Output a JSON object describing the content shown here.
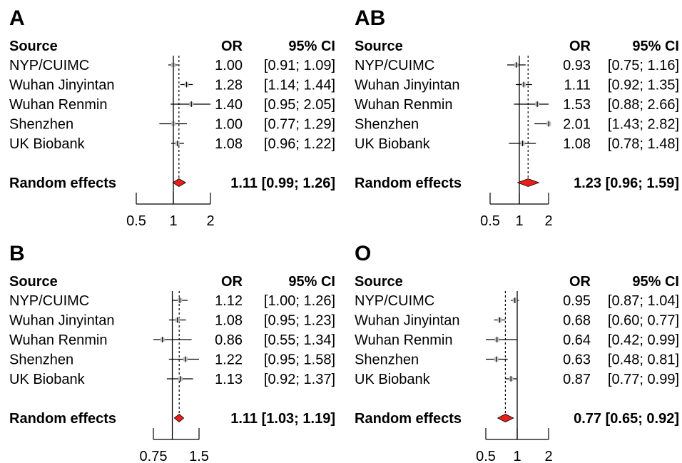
{
  "chart_data": [
    {
      "type": "forest",
      "panel_label": "A",
      "headers": {
        "source": "Source",
        "or": "OR",
        "ci": "95% CI"
      },
      "studies": [
        {
          "source": "NYP/CUIMC",
          "or": 1.0,
          "lower": 0.91,
          "upper": 1.09,
          "or_text": "1.00",
          "ci_text": "[0.91; 1.09]"
        },
        {
          "source": "Wuhan Jinyintan",
          "or": 1.28,
          "lower": 1.14,
          "upper": 1.44,
          "or_text": "1.28",
          "ci_text": "[1.14; 1.44]"
        },
        {
          "source": "Wuhan Renmin",
          "or": 1.4,
          "lower": 0.95,
          "upper": 2.05,
          "or_text": "1.40",
          "ci_text": "[0.95; 2.05]"
        },
        {
          "source": "Shenzhen",
          "or": 1.0,
          "lower": 0.77,
          "upper": 1.29,
          "or_text": "1.00",
          "ci_text": "[0.77; 1.29]"
        },
        {
          "source": "UK Biobank",
          "or": 1.08,
          "lower": 0.96,
          "upper": 1.22,
          "or_text": "1.08",
          "ci_text": "[0.96; 1.22]"
        }
      ],
      "summary": {
        "label": "Random effects",
        "or": 1.11,
        "lower": 0.99,
        "upper": 1.26,
        "text": "1.11 [0.99; 1.26]"
      },
      "x_scale": "log",
      "xlim": [
        0.5,
        2
      ],
      "xticks": [
        0.5,
        1,
        2
      ],
      "xtick_labels": [
        "0.5",
        "1",
        "2"
      ]
    },
    {
      "type": "forest",
      "panel_label": "AB",
      "headers": {
        "source": "Source",
        "or": "OR",
        "ci": "95% CI"
      },
      "studies": [
        {
          "source": "NYP/CUIMC",
          "or": 0.93,
          "lower": 0.75,
          "upper": 1.16,
          "or_text": "0.93",
          "ci_text": "[0.75; 1.16]"
        },
        {
          "source": "Wuhan Jinyintan",
          "or": 1.11,
          "lower": 0.92,
          "upper": 1.35,
          "or_text": "1.11",
          "ci_text": "[0.92; 1.35]"
        },
        {
          "source": "Wuhan Renmin",
          "or": 1.53,
          "lower": 0.88,
          "upper": 2.66,
          "or_text": "1.53",
          "ci_text": "[0.88; 2.66]"
        },
        {
          "source": "Shenzhen",
          "or": 2.01,
          "lower": 1.43,
          "upper": 2.82,
          "or_text": "2.01",
          "ci_text": "[1.43; 2.82]"
        },
        {
          "source": "UK Biobank",
          "or": 1.08,
          "lower": 0.78,
          "upper": 1.48,
          "or_text": "1.08",
          "ci_text": "[0.78; 1.48]"
        }
      ],
      "summary": {
        "label": "Random effects",
        "or": 1.23,
        "lower": 0.96,
        "upper": 1.59,
        "text": "1.23 [0.96; 1.59]"
      },
      "x_scale": "log",
      "xlim": [
        0.5,
        2
      ],
      "xticks": [
        0.5,
        1,
        2
      ],
      "xtick_labels": [
        "0.5",
        "1",
        "2"
      ]
    },
    {
      "type": "forest",
      "panel_label": "B",
      "headers": {
        "source": "Source",
        "or": "OR",
        "ci": "95% CI"
      },
      "studies": [
        {
          "source": "NYP/CUIMC",
          "or": 1.12,
          "lower": 1.0,
          "upper": 1.26,
          "or_text": "1.12",
          "ci_text": "[1.00; 1.26]"
        },
        {
          "source": "Wuhan Jinyintan",
          "or": 1.08,
          "lower": 0.95,
          "upper": 1.23,
          "or_text": "1.08",
          "ci_text": "[0.95; 1.23]"
        },
        {
          "source": "Wuhan Renmin",
          "or": 0.86,
          "lower": 0.55,
          "upper": 1.34,
          "or_text": "0.86",
          "ci_text": "[0.55; 1.34]"
        },
        {
          "source": "Shenzhen",
          "or": 1.22,
          "lower": 0.95,
          "upper": 1.58,
          "or_text": "1.22",
          "ci_text": "[0.95; 1.58]"
        },
        {
          "source": "UK Biobank",
          "or": 1.13,
          "lower": 0.92,
          "upper": 1.37,
          "or_text": "1.13",
          "ci_text": "[0.92; 1.37]"
        }
      ],
      "summary": {
        "label": "Random effects",
        "or": 1.11,
        "lower": 1.03,
        "upper": 1.19,
        "text": "1.11 [1.03; 1.19]"
      },
      "x_scale": "log",
      "xlim": [
        0.75,
        1.5
      ],
      "xticks": [
        0.75,
        1.5
      ],
      "xtick_labels": [
        "0.75",
        "1.5"
      ]
    },
    {
      "type": "forest",
      "panel_label": "O",
      "headers": {
        "source": "Source",
        "or": "OR",
        "ci": "95% CI"
      },
      "studies": [
        {
          "source": "NYP/CUIMC",
          "or": 0.95,
          "lower": 0.87,
          "upper": 1.04,
          "or_text": "0.95",
          "ci_text": "[0.87; 1.04]"
        },
        {
          "source": "Wuhan Jinyintan",
          "or": 0.68,
          "lower": 0.6,
          "upper": 0.77,
          "or_text": "0.68",
          "ci_text": "[0.60; 0.77]"
        },
        {
          "source": "Wuhan Renmin",
          "or": 0.64,
          "lower": 0.42,
          "upper": 0.99,
          "or_text": "0.64",
          "ci_text": "[0.42; 0.99]"
        },
        {
          "source": "Shenzhen",
          "or": 0.63,
          "lower": 0.48,
          "upper": 0.81,
          "or_text": "0.63",
          "ci_text": "[0.48; 0.81]"
        },
        {
          "source": "UK Biobank",
          "or": 0.87,
          "lower": 0.77,
          "upper": 0.99,
          "or_text": "0.87",
          "ci_text": "[0.77; 0.99]"
        }
      ],
      "summary": {
        "label": "Random effects",
        "or": 0.77,
        "lower": 0.65,
        "upper": 0.92,
        "text": "0.77 [0.65; 0.92]"
      },
      "x_scale": "log",
      "xlim": [
        0.5,
        2
      ],
      "xticks": [
        0.5,
        1,
        2
      ],
      "xtick_labels": [
        "0.5",
        "1",
        "2"
      ]
    }
  ],
  "colors": {
    "study_box": "#bfbfbf",
    "ci_line": "#000000",
    "summary_diamond": "#e8201a",
    "null_line": "#000000"
  }
}
